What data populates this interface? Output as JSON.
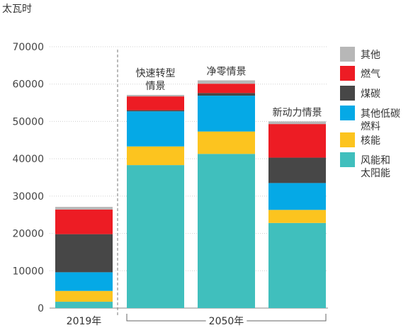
{
  "chart_data": {
    "type": "bar",
    "stacked": true,
    "unit": "太瓦时",
    "ylim": [
      0,
      70000
    ],
    "yticks": [
      0,
      10000,
      20000,
      30000,
      40000,
      50000,
      60000,
      70000
    ],
    "categories": [
      "2019年",
      "快速转型情景",
      "净零情景",
      "新动力情景"
    ],
    "category_lines": [
      [
        "2019年"
      ],
      [
        "快速转型",
        "情景"
      ],
      [
        "净零情景"
      ],
      [
        "新动力情景"
      ]
    ],
    "group_label": "2050年",
    "legend_placement": "right",
    "series": [
      {
        "name": "风能和太阳能",
        "legend_lines": [
          "风能和",
          "太阳能"
        ],
        "color": "#40bfbd",
        "values": [
          1700,
          38300,
          41300,
          22800
        ]
      },
      {
        "name": "核能",
        "legend_lines": [
          "核能"
        ],
        "color": "#fcc41f",
        "values": [
          2900,
          5000,
          6000,
          3500
        ]
      },
      {
        "name": "其他低碳燃料",
        "legend_lines": [
          "其他低碳",
          "燃料"
        ],
        "color": "#05a9e6",
        "values": [
          5000,
          9400,
          9600,
          7200
        ]
      },
      {
        "name": "煤碳",
        "legend_lines": [
          "煤碳"
        ],
        "color": "#474747",
        "values": [
          10200,
          300,
          700,
          6800
        ]
      },
      {
        "name": "燃气",
        "legend_lines": [
          "燃气"
        ],
        "color": "#ed1c24",
        "values": [
          6600,
          3700,
          2500,
          9000
        ]
      },
      {
        "name": "其他",
        "legend_lines": [
          "其他"
        ],
        "color": "#b7b7b7",
        "values": [
          700,
          400,
          900,
          700
        ]
      }
    ]
  }
}
